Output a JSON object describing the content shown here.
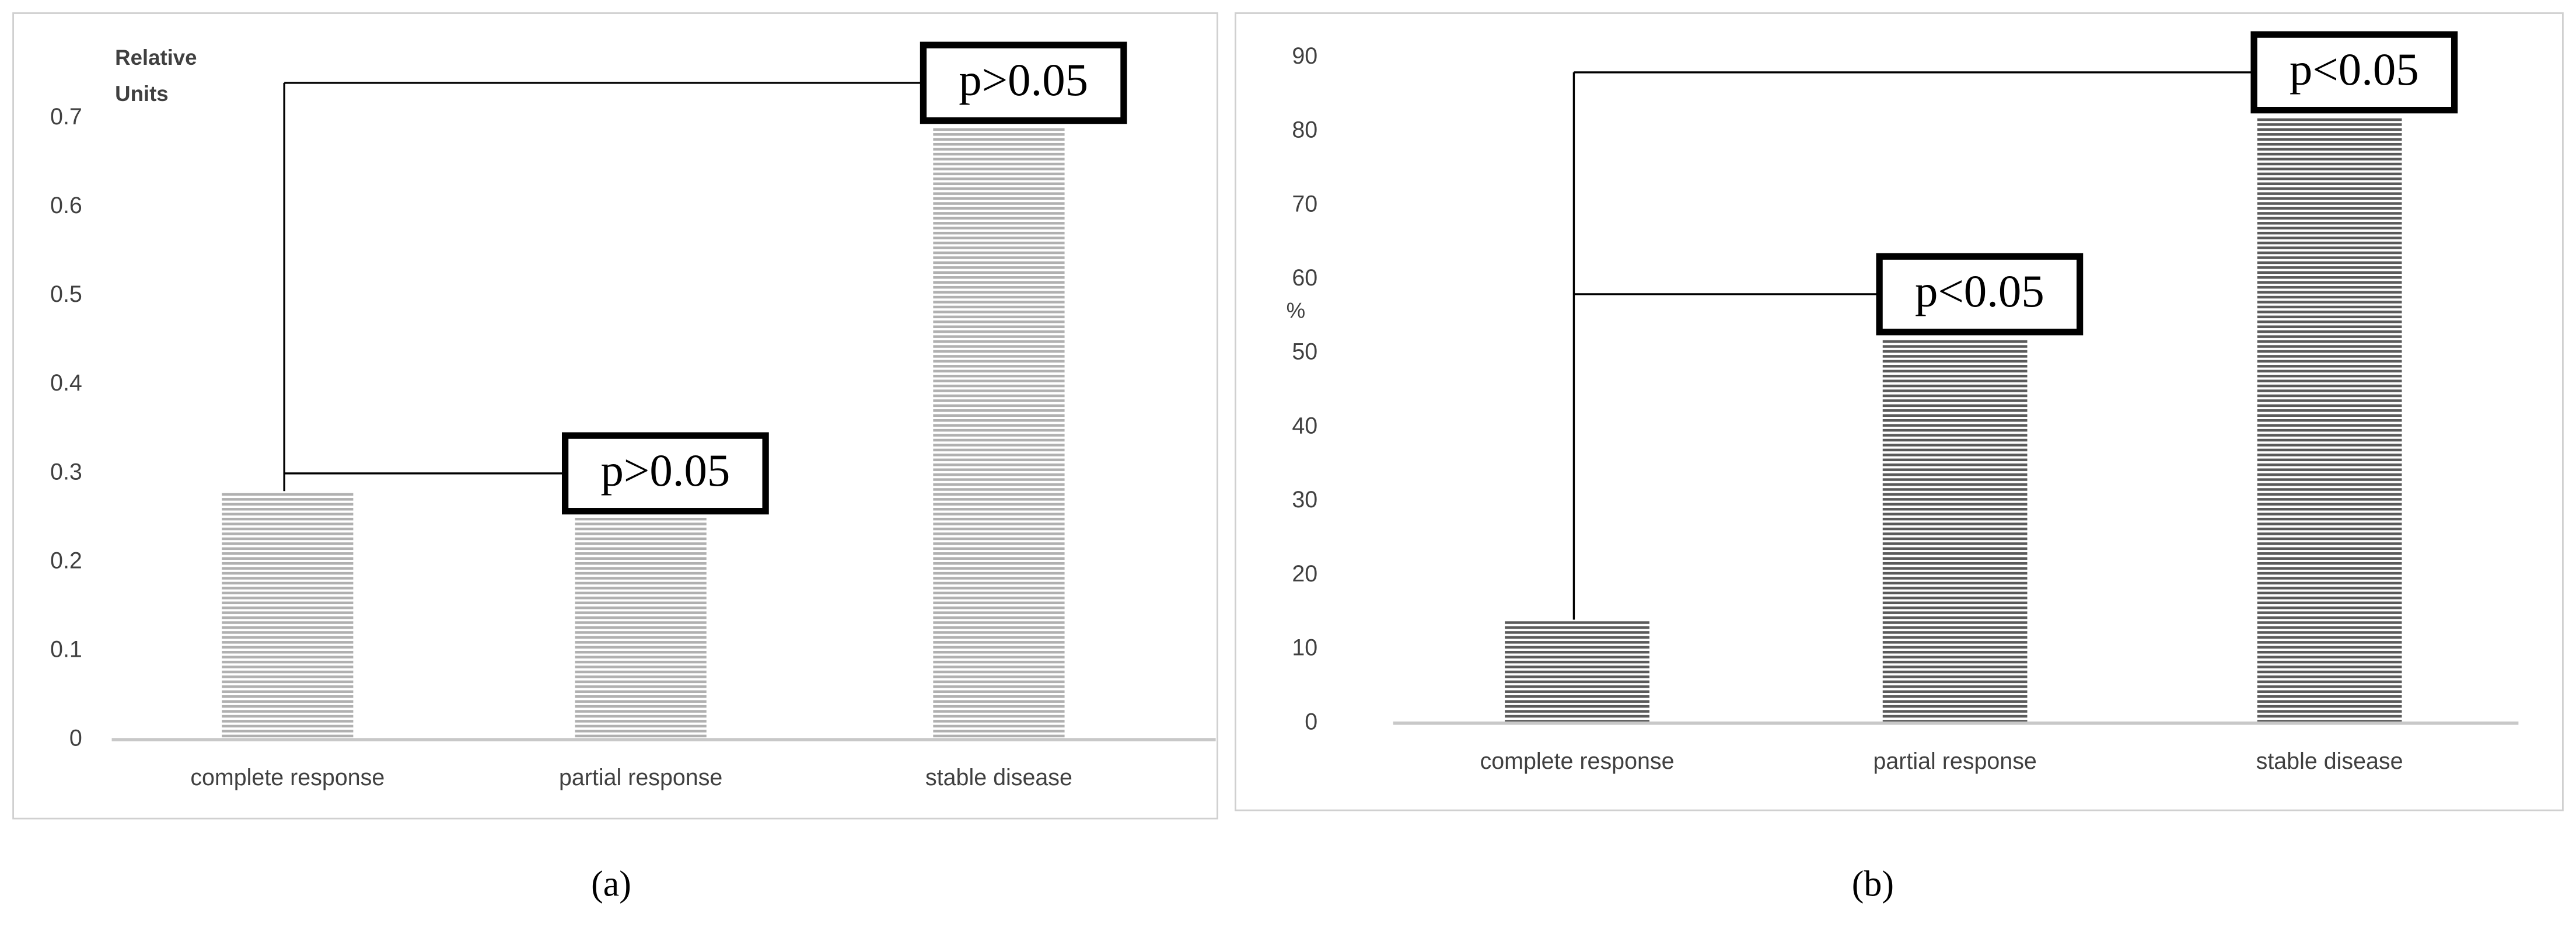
{
  "chart_data": [
    {
      "type": "bar",
      "caption": "(a)",
      "y_label": [
        "Relative",
        "Units"
      ],
      "categories": [
        "complete response",
        "partial response",
        "stable disease"
      ],
      "values": [
        0.28,
        0.25,
        0.69
      ],
      "color": "#b0b0b0",
      "ylim": [
        0,
        0.7
      ],
      "yticks": [
        0,
        0.1,
        0.2,
        0.3,
        0.4,
        0.5,
        0.6,
        0.7
      ],
      "annotations": [
        "p>0.05",
        "p>0.05"
      ]
    },
    {
      "type": "bar",
      "caption": "(b)",
      "y_label": [
        "%"
      ],
      "categories": [
        "complete response",
        "partial response",
        "stable disease"
      ],
      "values": [
        14,
        52,
        82
      ],
      "color": "#5a5a5a",
      "ylim": [
        0,
        90
      ],
      "yticks": [
        0,
        10,
        20,
        30,
        40,
        50,
        60,
        70,
        80,
        90
      ],
      "annotations": [
        "p<0.05",
        "p<0.05"
      ]
    }
  ]
}
